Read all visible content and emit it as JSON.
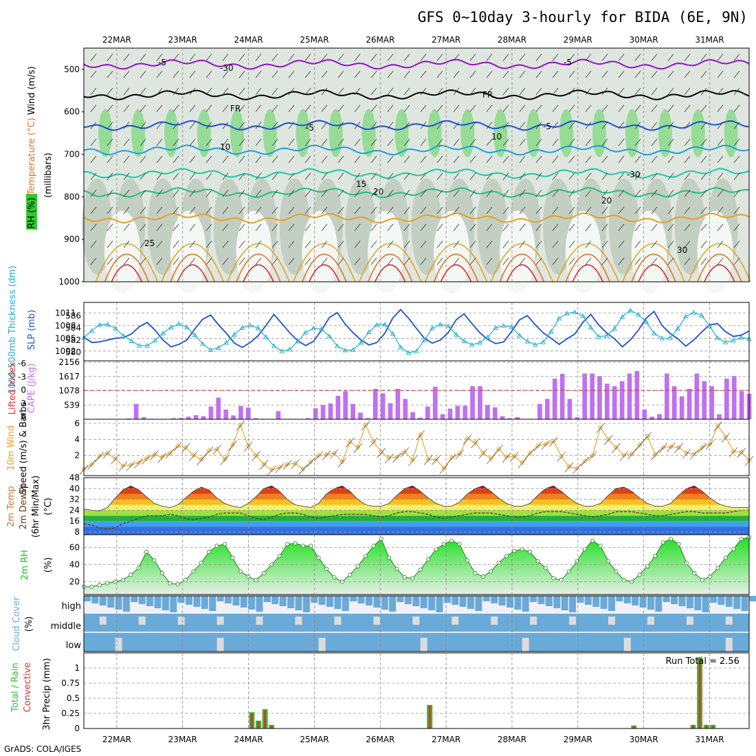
{
  "title": "GFS 0~10day 3-hourly for BIDA (6E, 9N)",
  "footer": "GrADS: COLA/IGES",
  "colors": {
    "rh_green": "#31c831",
    "temp_blue": "#1a4fd8",
    "temp_cyan": "#1aa0dc",
    "temp_teal": "#19c8a8",
    "temp_green": "#20c07a",
    "temp_orange": "#e8a020",
    "temp_red": "#e02828",
    "purple": "#9010c8",
    "cape": "#c070f0",
    "wind10": "#e8a020",
    "precip_total": "#30c030",
    "precip_conv": "#e03030",
    "cloud": "#6aaad8"
  },
  "chart_data": [
    {
      "type": "heatmap",
      "name": "upper",
      "ylabels": [
        "RH (%)",
        "Temperature (°C)",
        "Wind (m/s)",
        "(millibars)"
      ],
      "yticks": [
        500,
        600,
        700,
        800,
        900,
        1000
      ],
      "ylim": [
        450,
        1000
      ],
      "x_dates": [
        "22MAR",
        "23MAR",
        "24MAR",
        "25MAR",
        "26MAR",
        "27MAR",
        "28MAR",
        "29MAR",
        "30MAR",
        "31MAR"
      ],
      "contour_labels": [
        "-5",
        "-5",
        "-30",
        "FR",
        "FR",
        "-5",
        "-5",
        "10",
        "10",
        "15",
        "20",
        "20",
        "25",
        "30",
        "-30"
      ],
      "isotherms": [
        {
          "label": "-5",
          "color": "#9010c8",
          "level": 488
        },
        {
          "label": "FR",
          "color": "#000000",
          "level": 560
        },
        {
          "label": "-5",
          "color": "#1a4fd8",
          "level": 632
        },
        {
          "label": "10",
          "color": "#1aa0dc",
          "level": 690
        },
        {
          "label": "15",
          "color": "#19c8a8",
          "level": 745
        },
        {
          "label": "20",
          "color": "#20c07a",
          "level": 790
        },
        {
          "label": "25",
          "color": "#e8a020",
          "level": 850
        }
      ]
    },
    {
      "type": "line",
      "name": "thickness_slp",
      "ylabels": [
        "1000-500mb Thickness (dm)",
        "SLP (mb)"
      ],
      "left_ticks": [
        580,
        582,
        584,
        586
      ],
      "right_ticks": [
        1002,
        1005,
        1008,
        1011
      ],
      "series": [
        {
          "name": "Thickness",
          "color": "#1a4fd8",
          "values": [
            582.5,
            581.6,
            581.7,
            582.0,
            582.3,
            582.4,
            583.0,
            584.2,
            584.9,
            583.6,
            582.0,
            580.9,
            581.3,
            582.0,
            583.8,
            585.4,
            586.1,
            584.5,
            583.1,
            581.5,
            580.8,
            581.6,
            582.7,
            584.4,
            586.2,
            584.7,
            583.2,
            581.9,
            581.1,
            581.8,
            583.6,
            585.7,
            586.5,
            584.6,
            583.2,
            582.0,
            581.2,
            581.6,
            583.1,
            585.6,
            587.0,
            585.6,
            583.9,
            582.3,
            581.5,
            582.0,
            583.2,
            585.3,
            586.3,
            584.7,
            583.2,
            582.1,
            581.4,
            581.7,
            583.4,
            585.3,
            586.0,
            584.5,
            583.2,
            582.3,
            581.3,
            582.2,
            583.0,
            584.9,
            586.2,
            584.5,
            583.2,
            582.2,
            580.9,
            582.0,
            583.6,
            585.6,
            586.7,
            584.4,
            583.1,
            582.2,
            581.0,
            582.0,
            583.3,
            584.5,
            584.7,
            583.4,
            582.6,
            582.8,
            583.5
          ]
        },
        {
          "name": "SLP",
          "color": "#20b0c8",
          "values": [
            1005.2,
            1006.8,
            1008.2,
            1008.3,
            1007.3,
            1005.6,
            1004.4,
            1003.3,
            1003.3,
            1004.5,
            1006.2,
            1007.6,
            1008.4,
            1007.6,
            1005.8,
            1003.7,
            1002.3,
            1002.8,
            1004.0,
            1005.9,
            1007.5,
            1008.1,
            1007.4,
            1005.3,
            1003.2,
            1002.0,
            1002.4,
            1004.3,
            1006.4,
            1007.4,
            1007.2,
            1005.5,
            1003.2,
            1002.2,
            1002.3,
            1004.0,
            1006.5,
            1008.2,
            1008.3,
            1006.1,
            1002.9,
            1001.6,
            1002.0,
            1004.6,
            1007.4,
            1008.3,
            1007.9,
            1005.9,
            1004.4,
            1003.5,
            1004.0,
            1005.3,
            1007.5,
            1008.0,
            1007.7,
            1005.7,
            1004.3,
            1003.5,
            1004.1,
            1006.6,
            1009.7,
            1010.9,
            1011.2,
            1010.3,
            1007.6,
            1005.4,
            1005.6,
            1007.3,
            1010.1,
            1011.6,
            1010.6,
            1008.9,
            1006.2,
            1005.0,
            1005.1,
            1007.3,
            1010.2,
            1011.1,
            1010.4,
            1007.9,
            1005.1,
            1004.1,
            1004.5,
            1005.2,
            1004.9
          ]
        }
      ]
    },
    {
      "type": "bar",
      "name": "cape_li",
      "ylabels": [
        "Lifted Index",
        "CAPE (J/kg)"
      ],
      "left_ticks": [
        "-6",
        "-3",
        "0",
        "3",
        "6"
      ],
      "right_ticks": [
        "539",
        "1078",
        "1617",
        "2156"
      ],
      "cape": [
        0,
        0,
        0,
        0,
        0,
        0,
        30,
        600,
        80,
        20,
        0,
        0,
        40,
        50,
        100,
        160,
        120,
        500,
        850,
        380,
        150,
        520,
        460,
        40,
        20,
        0,
        320,
        0,
        0,
        0,
        40,
        430,
        560,
        620,
        920,
        1100,
        600,
        260,
        40,
        1200,
        1020,
        630,
        1200,
        800,
        280,
        60,
        500,
        1280,
        200,
        420,
        530,
        530,
        1300,
        1300,
        560,
        470,
        120,
        40,
        80,
        0,
        0,
        600,
        800,
        1600,
        1790,
        800,
        80,
        1800,
        1800,
        1700,
        1400,
        1300,
        1500,
        1800,
        1900,
        380,
        100,
        200,
        1800,
        1300,
        900,
        1200,
        1800,
        1500,
        1300,
        200,
        1600,
        1700,
        1100,
        1000
      ]
    },
    {
      "type": "line",
      "name": "wind10",
      "ylabels": [
        "10m Wind",
        "Speed (m/s) & Barbs"
      ],
      "yticks": [
        2,
        4,
        6
      ],
      "ylim": [
        0,
        6
      ],
      "values": [
        0.3,
        0.9,
        1.9,
        2.3,
        1.6,
        0.7,
        0.8,
        1.1,
        1.6,
        2.1,
        1.8,
        2.3,
        3.2,
        3.0,
        2.0,
        1.5,
        2.6,
        2.8,
        1.5,
        3.3,
        5.8,
        3.2,
        2.0,
        0.9,
        0.2,
        0.5,
        0.9,
        1.0,
        0.3,
        1.2,
        2.0,
        2.1,
        2.3,
        1.2,
        3.7,
        3.0,
        5.8,
        3.7,
        2.4,
        1.7,
        1.8,
        2.5,
        1.4,
        4.6,
        1.5,
        1.5,
        0.4,
        1.7,
        2.2,
        4.1,
        3.6,
        2.3,
        1.6,
        2.8,
        1.8,
        1.9,
        1.1,
        2.3,
        3.2,
        3.4,
        3.8,
        1.9,
        0.6,
        0.4,
        1.3,
        2.0,
        5.5,
        4.0,
        3.0,
        2.0,
        2.2,
        3.3,
        4.4,
        2.1,
        3.0,
        3.1,
        3.0,
        2.3,
        2.2,
        3.0,
        3.4,
        5.7,
        4.3,
        2.5,
        2.4,
        1.4
      ]
    },
    {
      "type": "area",
      "name": "temp2m",
      "ylabels": [
        "2m Temp",
        "2m DewPt",
        "(6hr Min/Max)",
        "(°C)"
      ],
      "left_ticks": [
        8,
        16,
        24,
        32,
        40,
        48
      ],
      "temp": [
        25,
        24,
        23.5,
        26,
        33,
        39,
        42,
        39,
        34,
        29,
        27,
        26,
        28,
        33,
        38,
        41,
        39,
        33,
        29,
        27,
        26,
        29,
        34,
        40,
        42,
        38,
        32,
        28,
        27,
        26,
        29,
        36,
        40,
        42,
        38,
        32,
        28,
        27,
        27,
        29,
        35,
        40,
        42,
        38,
        33,
        29,
        27,
        27,
        30,
        36,
        40,
        42,
        38,
        33,
        29,
        27,
        27,
        29,
        35,
        40,
        42,
        38,
        33,
        29,
        27,
        27,
        29,
        35,
        40,
        41,
        38,
        33,
        29,
        27,
        27,
        29,
        35,
        40,
        42,
        38,
        33,
        29,
        27,
        26,
        26,
        26
      ],
      "dewpt": [
        14,
        13,
        11,
        10,
        11,
        14,
        16,
        18,
        20,
        20,
        20,
        21,
        20,
        18,
        17,
        18,
        19,
        21,
        22,
        22,
        22,
        20,
        18,
        17,
        19,
        21,
        22,
        22,
        21,
        19,
        18,
        19,
        20,
        21,
        21,
        21,
        21,
        20,
        19,
        20,
        22,
        23,
        23,
        22,
        21,
        19,
        18,
        19,
        20,
        21,
        22,
        22,
        22,
        21,
        20,
        19,
        19,
        20,
        22,
        23,
        23,
        23,
        22,
        21,
        20,
        19,
        20,
        21,
        23,
        23,
        23,
        22,
        21,
        20,
        20,
        21,
        22,
        23,
        23,
        22,
        22,
        22,
        22,
        23,
        24,
        24
      ]
    },
    {
      "type": "area",
      "name": "rh2m",
      "ylabels": [
        "2m RH",
        "(%)"
      ],
      "yticks": [
        20,
        40,
        60
      ],
      "ylim": [
        5,
        75
      ],
      "values": [
        14,
        14,
        16,
        18,
        20,
        22,
        28,
        36,
        55,
        45,
        30,
        18,
        17,
        22,
        32,
        42,
        55,
        62,
        64,
        48,
        32,
        26,
        22,
        30,
        40,
        50,
        64,
        65,
        62,
        62,
        48,
        35,
        25,
        20,
        28,
        38,
        50,
        62,
        70,
        48,
        35,
        25,
        24,
        34,
        46,
        58,
        64,
        68,
        64,
        45,
        30,
        26,
        32,
        42,
        50,
        56,
        58,
        55,
        44,
        36,
        24,
        22,
        32,
        44,
        58,
        68,
        62,
        44,
        32,
        22,
        20,
        28,
        38,
        50,
        66,
        70,
        64,
        42,
        30,
        22,
        26,
        36,
        48,
        58,
        70,
        72
      ]
    },
    {
      "type": "bar",
      "name": "cloud",
      "ylabels": [
        "Cloud Cover",
        "(%)"
      ],
      "rows": [
        "high",
        "middle",
        "low"
      ]
    },
    {
      "type": "bar",
      "name": "precip",
      "ylabels": [
        "Total / Rain",
        "Convective",
        "3hr Precip (mm)"
      ],
      "yticks": [
        "0",
        "0.25",
        "0.5",
        "0.75",
        "1"
      ],
      "ylim": [
        0,
        1.25
      ],
      "run_total_label": "Run Total =",
      "run_total_value": "2.56",
      "bars": [
        {
          "day": 24.05,
          "total": 0.27,
          "conv": 0.25
        },
        {
          "day": 24.15,
          "total": 0.13,
          "conv": 0.12
        },
        {
          "day": 24.25,
          "total": 0.32,
          "conv": 0.3
        },
        {
          "day": 24.35,
          "total": 0.06,
          "conv": 0.05
        },
        {
          "day": 26.75,
          "total": 0.39,
          "conv": 0.38
        },
        {
          "day": 29.85,
          "total": 0.05,
          "conv": 0.04
        },
        {
          "day": 30.75,
          "total": 0.06,
          "conv": 0.05
        },
        {
          "day": 30.85,
          "total": 1.18,
          "conv": 1.15
        },
        {
          "day": 30.95,
          "total": 0.06,
          "conv": 0.05
        },
        {
          "day": 31.05,
          "total": 0.06,
          "conv": 0.05
        }
      ]
    }
  ]
}
